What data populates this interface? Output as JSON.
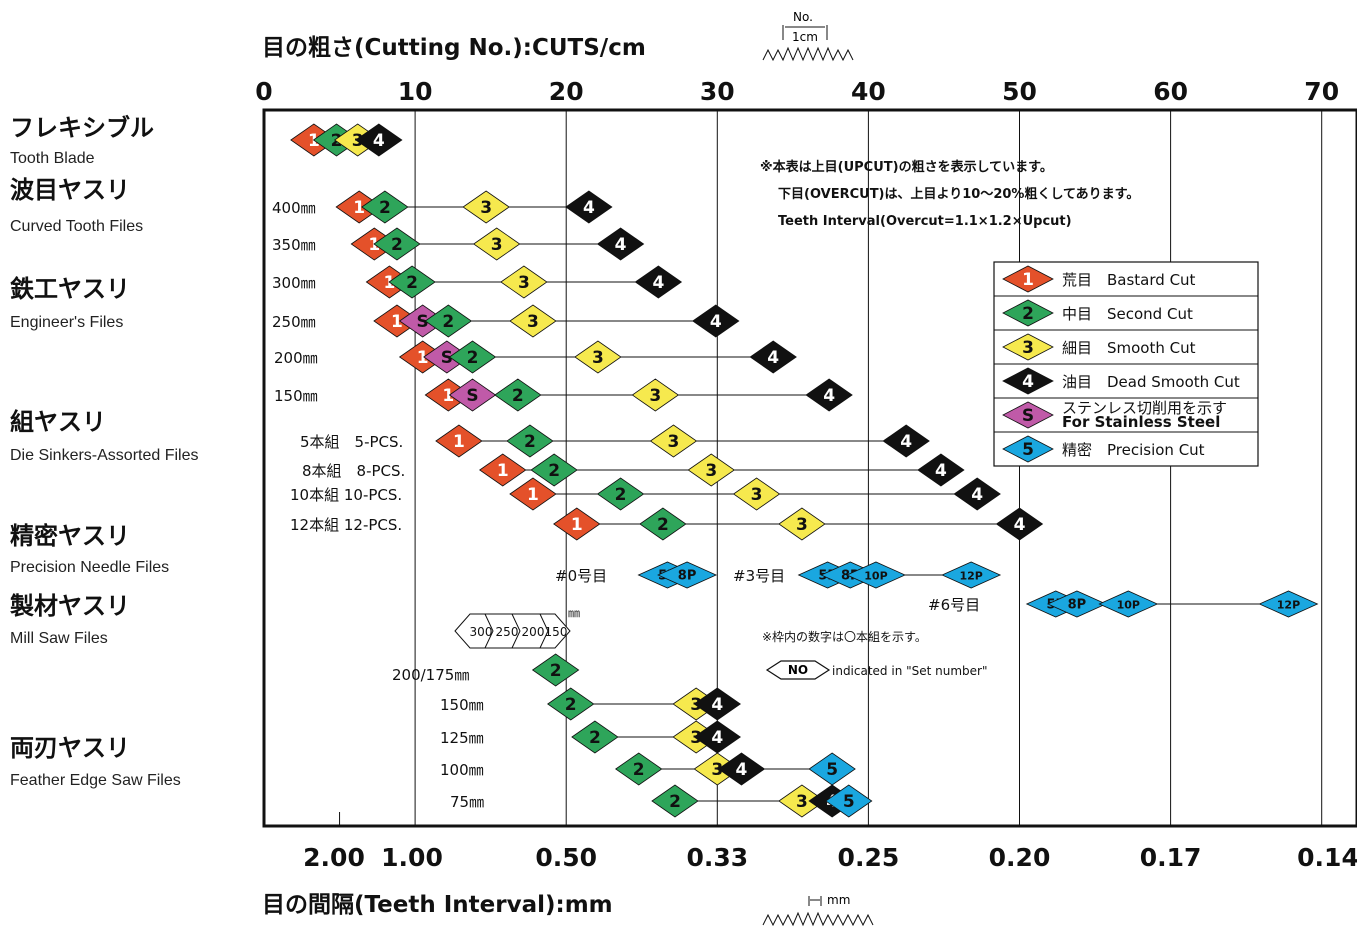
{
  "chart_data": {
    "type": "scatter",
    "title": "目の粗さ(Cutting No.):CUTS/cm",
    "bottom_title": "目の間隔(Teeth Interval):mm",
    "xlim": [
      0,
      70
    ],
    "top_ticks": [
      "0",
      "10",
      "20",
      "30",
      "40",
      "50",
      "60",
      "70"
    ],
    "bottom_ticks": [
      {
        "pos": 5,
        "label": "2.00"
      },
      {
        "pos": 10,
        "label": "1.00"
      },
      {
        "pos": 20,
        "label": "0.50"
      },
      {
        "pos": 30,
        "label": "0.33"
      },
      {
        "pos": 40,
        "label": "0.25"
      },
      {
        "pos": 50,
        "label": "0.20"
      },
      {
        "pos": 60,
        "label": "0.17"
      },
      {
        "pos": 70,
        "label": "0.14"
      }
    ],
    "top_icon_label": "No.",
    "top_icon_sub": "1cm",
    "bottom_icon_label": "mm",
    "categories": [
      {
        "jp": "フレキシブル",
        "en": "Tooth Blade"
      },
      {
        "jp": "波目ヤスリ",
        "en": "Curved Tooth Files"
      },
      {
        "jp": "鉄工ヤスリ",
        "en": "Engineer's Files"
      },
      {
        "jp": "組ヤスリ",
        "en": "Die Sinkers-Assorted Files"
      },
      {
        "jp": "精密ヤスリ",
        "en": "Precision Needle Files"
      },
      {
        "jp": "製材ヤスリ",
        "en": "Mill Saw Files"
      },
      {
        "jp": "両刃ヤスリ",
        "en": "Feather Edge Saw Files"
      }
    ],
    "rows": [
      {
        "label": "",
        "line": false,
        "marks": [
          {
            "g": "1",
            "x": 3.3
          },
          {
            "g": "2",
            "x": 4.8
          },
          {
            "g": "3",
            "x": 6.2
          },
          {
            "g": "4",
            "x": 7.6
          }
        ]
      },
      {
        "label": "400㎜",
        "marks": [
          {
            "g": "1",
            "x": 6.3
          },
          {
            "g": "2",
            "x": 8.0
          },
          {
            "g": "3",
            "x": 14.7
          },
          {
            "g": "4",
            "x": 21.5
          }
        ]
      },
      {
        "label": "350㎜",
        "marks": [
          {
            "g": "1",
            "x": 7.3
          },
          {
            "g": "2",
            "x": 8.8
          },
          {
            "g": "3",
            "x": 15.4
          },
          {
            "g": "4",
            "x": 23.6
          }
        ]
      },
      {
        "label": "300㎜",
        "marks": [
          {
            "g": "1",
            "x": 8.3
          },
          {
            "g": "2",
            "x": 9.8
          },
          {
            "g": "3",
            "x": 17.2
          },
          {
            "g": "4",
            "x": 26.1
          }
        ]
      },
      {
        "label": "250㎜",
        "marks": [
          {
            "g": "1",
            "x": 8.8
          },
          {
            "g": "S",
            "x": 10.5
          },
          {
            "g": "2",
            "x": 12.2
          },
          {
            "g": "3",
            "x": 17.8
          },
          {
            "g": "4",
            "x": 29.9
          }
        ]
      },
      {
        "label": "200㎜",
        "marks": [
          {
            "g": "1",
            "x": 10.5
          },
          {
            "g": "S",
            "x": 12.1
          },
          {
            "g": "2",
            "x": 13.8
          },
          {
            "g": "3",
            "x": 22.1
          },
          {
            "g": "4",
            "x": 33.7
          }
        ]
      },
      {
        "label": "150㎜",
        "marks": [
          {
            "g": "1",
            "x": 12.2
          },
          {
            "g": "S",
            "x": 13.8
          },
          {
            "g": "2",
            "x": 16.8
          },
          {
            "g": "3",
            "x": 25.9
          },
          {
            "g": "4",
            "x": 37.4
          }
        ]
      },
      {
        "label": "5本組　5-PCS.",
        "marks": [
          {
            "g": "1",
            "x": 12.9
          },
          {
            "g": "2",
            "x": 17.6
          },
          {
            "g": "3",
            "x": 27.1
          },
          {
            "g": "4",
            "x": 42.5
          }
        ]
      },
      {
        "label": "8本組　8-PCS.",
        "marks": [
          {
            "g": "1",
            "x": 15.8
          },
          {
            "g": "2",
            "x": 19.2
          },
          {
            "g": "3",
            "x": 29.6
          },
          {
            "g": "4",
            "x": 44.8
          }
        ]
      },
      {
        "label": "10本組 10-PCS.",
        "marks": [
          {
            "g": "1",
            "x": 17.8
          },
          {
            "g": "2",
            "x": 23.6
          },
          {
            "g": "3",
            "x": 32.6
          },
          {
            "g": "4",
            "x": 47.2
          }
        ]
      },
      {
        "label": "12本組 12-PCS.",
        "marks": [
          {
            "g": "1",
            "x": 20.7
          },
          {
            "g": "2",
            "x": 26.4
          },
          {
            "g": "3",
            "x": 35.6
          },
          {
            "g": "4",
            "x": 50.0
          }
        ]
      },
      {
        "label": "",
        "line": false,
        "marks": [
          {
            "g": "2",
            "x": 19.3
          }
        ]
      },
      {
        "label": "150㎜",
        "marks": [
          {
            "g": "2",
            "x": 20.3
          },
          {
            "g": "3",
            "x": 28.6
          },
          {
            "g": "4",
            "x": 30.0
          }
        ]
      },
      {
        "label": "125㎜",
        "marks": [
          {
            "g": "2",
            "x": 21.9
          },
          {
            "g": "3",
            "x": 28.6
          },
          {
            "g": "4",
            "x": 30.0
          }
        ]
      },
      {
        "label": "100㎜",
        "marks": [
          {
            "g": "2",
            "x": 24.8
          },
          {
            "g": "3",
            "x": 30.0
          },
          {
            "g": "4",
            "x": 31.6
          },
          {
            "g": "5",
            "x": 37.6
          }
        ]
      },
      {
        "label": "75㎜",
        "marks": [
          {
            "g": "2",
            "x": 27.2
          },
          {
            "g": "3",
            "x": 35.6
          },
          {
            "g": "4",
            "x": 37.6
          },
          {
            "g": "5",
            "x": 38.7
          }
        ]
      }
    ],
    "mill_label": "200/175㎜",
    "mill_sizes": [
      "300",
      "250",
      "200",
      "150"
    ],
    "mill_unit": "㎜",
    "precision": [
      {
        "label": "#0号目",
        "marks": [
          {
            "g": "5P",
            "x": 26.7
          },
          {
            "g": "8P",
            "x": 28.0
          }
        ]
      },
      {
        "label": "#3号目",
        "marks": [
          {
            "g": "5P",
            "x": 37.3
          },
          {
            "g": "8P",
            "x": 38.8
          },
          {
            "g": "10P",
            "x": 40.5
          },
          {
            "g": "12P",
            "x": 46.8
          }
        ]
      },
      {
        "label": "#6号目",
        "marks": [
          {
            "g": "5P",
            "x": 52.4
          },
          {
            "g": "8P",
            "x": 53.8
          },
          {
            "g": "10P",
            "x": 57.2
          },
          {
            "g": "12P",
            "x": 67.8
          }
        ]
      }
    ],
    "notes": [
      "※本表は上目(UPCUT)の粗さを表示しています。",
      "下目(OVERCUT)は、上目より10〜20%粗くしてあります。",
      "Teeth Interval(Overcut=1.1×1.2×Upcut)"
    ],
    "box_note": "※枠内の数字は〇本組を示す。",
    "set_note_badge": "NO",
    "set_note_text": "indicated in \"Set number\"",
    "legend": [
      {
        "g": "1",
        "label": "荒目　Bastard Cut"
      },
      {
        "g": "2",
        "label": "中目　Second Cut"
      },
      {
        "g": "3",
        "label": "細目　Smooth Cut"
      },
      {
        "g": "4",
        "label": "油目　Dead Smooth Cut"
      },
      {
        "g": "S",
        "label": "ステンレス切削用を示す",
        "label2": "For Stainless Steel"
      },
      {
        "g": "5",
        "label": "精密　Precision Cut"
      }
    ],
    "grades": {
      "1": {
        "fill": "#e4512a",
        "text": "#ffffff"
      },
      "2": {
        "fill": "#2ea55a",
        "text": "#111111"
      },
      "3": {
        "fill": "#f6e94e",
        "text": "#111111"
      },
      "4": {
        "fill": "#111111",
        "text": "#ffffff"
      },
      "S": {
        "fill": "#c05aa8",
        "text": "#111111"
      },
      "5": {
        "fill": "#1aa7e0",
        "text": "#111111"
      },
      "P": {
        "fill": "#1aa7e0",
        "text": "#111111"
      }
    },
    "grid": true
  }
}
